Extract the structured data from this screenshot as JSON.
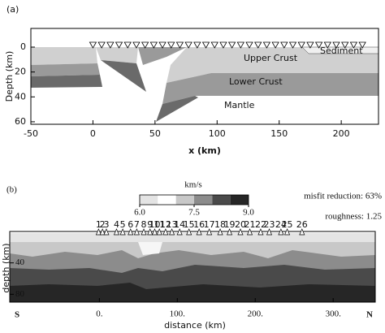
{
  "chart_data": [
    {
      "type": "cross-section",
      "panel_label": "(a)",
      "x_label": "x (km)",
      "y_label": "Depth (km)",
      "xlim": [
        -50,
        230
      ],
      "ylim": [
        -15,
        62
      ],
      "y_inverted": true,
      "xticks": [
        -50,
        0,
        50,
        100,
        150,
        200
      ],
      "yticks": [
        0,
        20,
        40,
        60
      ],
      "region_labels": [
        "Upper Crust",
        "Lower Crust",
        "Mantle",
        "Sediment"
      ],
      "stations_x": [
        0,
        7,
        14,
        21,
        28,
        35,
        42,
        49,
        56,
        63,
        70,
        77,
        84,
        91,
        98,
        105,
        112,
        119,
        126,
        133,
        140,
        147,
        154,
        161,
        168,
        175,
        182,
        189,
        196,
        203,
        210,
        217
      ]
    },
    {
      "type": "cross-section",
      "panel_label": "(b)",
      "x_label": "distance (km)",
      "y_label": "depth (km)",
      "xlim": [
        -115,
        354
      ],
      "ylim": [
        0,
        90
      ],
      "y_inverted": true,
      "xticks": [
        {
          "value": 0,
          "label": "0."
        },
        {
          "value": 100,
          "label": "100."
        },
        {
          "value": 200,
          "label": "200."
        },
        {
          "value": 300,
          "label": "300."
        }
      ],
      "yticks": [
        40,
        80
      ],
      "end_labels": [
        "S",
        "N"
      ],
      "colorbar": {
        "label": "km/s",
        "clim": [
          6,
          9
        ],
        "colors": [
          "#e4e4e4",
          "#ffffff",
          "#c8c8c8",
          "#8c8c8c",
          "#4a4a4a",
          "#262626"
        ],
        "ticks": [
          {
            "value": 6,
            "label": "6.0"
          },
          {
            "value": 7.5,
            "label": "7.5"
          },
          {
            "value": 9,
            "label": "9.0"
          }
        ]
      },
      "stats": [
        "misfit reduction: 63%",
        "roughness: 1.25"
      ],
      "stations": [
        {
          "label": "1",
          "x": -1
        },
        {
          "label": "2",
          "x": 4
        },
        {
          "label": "3",
          "x": 9
        },
        {
          "label": "4",
          "x": 22
        },
        {
          "label": "5",
          "x": 30
        },
        {
          "label": "6",
          "x": 40
        },
        {
          "label": "7",
          "x": 48
        },
        {
          "label": "8",
          "x": 57
        },
        {
          "label": "9",
          "x": 65
        },
        {
          "label": "10",
          "x": 71
        },
        {
          "label": "11",
          "x": 77
        },
        {
          "label": "12",
          "x": 85
        },
        {
          "label": "13",
          "x": 93
        },
        {
          "label": "14",
          "x": 103
        },
        {
          "label": "15",
          "x": 115
        },
        {
          "label": "16",
          "x": 128
        },
        {
          "label": "17",
          "x": 141
        },
        {
          "label": "18",
          "x": 155
        },
        {
          "label": "19",
          "x": 167
        },
        {
          "label": "20",
          "x": 181
        },
        {
          "label": "21",
          "x": 193
        },
        {
          "label": "22",
          "x": 207
        },
        {
          "label": "23",
          "x": 218
        },
        {
          "label": "24",
          "x": 233
        },
        {
          "label": "25",
          "x": 241
        },
        {
          "label": "26",
          "x": 260
        }
      ]
    }
  ]
}
